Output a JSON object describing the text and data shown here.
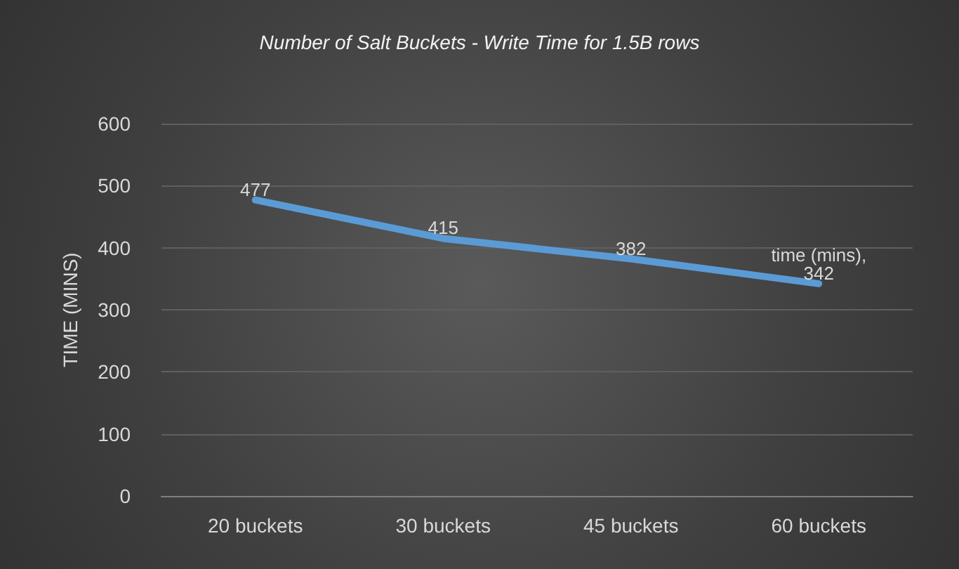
{
  "chart_data": {
    "type": "line",
    "title": "Number of Salt Buckets - Write Time for 1.5B rows",
    "ylabel": "TIME (MINS)",
    "categories": [
      "20 buckets",
      "30 buckets",
      "45 buckets",
      "60 buckets"
    ],
    "series": [
      {
        "name": "time (mins),",
        "color": "#5b9bd5",
        "values": [
          477,
          415,
          382,
          342
        ]
      }
    ],
    "ylim": [
      0,
      600
    ],
    "yticks": [
      0,
      100,
      200,
      300,
      400,
      500,
      600
    ],
    "grid": "y",
    "legend": false,
    "data_labels": true,
    "marker": "none",
    "line_style": "solid"
  }
}
